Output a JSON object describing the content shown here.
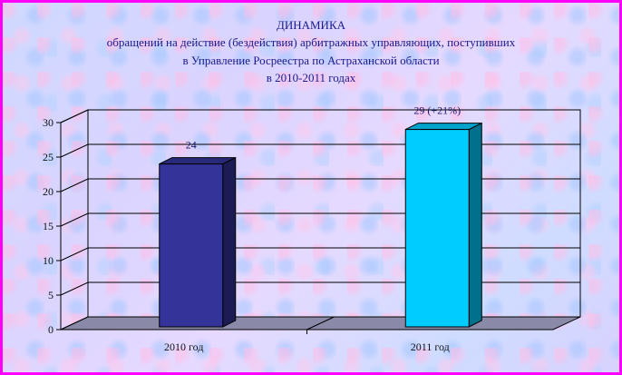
{
  "chart_data": {
    "type": "bar",
    "title": "ДИНАМИКА",
    "subtitle": [
      "обращений на действие (бездействия) арбитражных управляющих, поступивших",
      "в Управление Росреестра по Астраханской области",
      "в 2010-2011 годах"
    ],
    "categories": [
      "2010 год",
      "2011 год"
    ],
    "values": [
      24,
      29
    ],
    "data_labels": [
      "24",
      "29 (+21%)"
    ],
    "colors": [
      "#333399",
      "#00ccff"
    ],
    "xlabel": "",
    "ylabel": "",
    "ylim": [
      0,
      30
    ],
    "yticks": [
      "0",
      "5",
      "10",
      "15",
      "20",
      "25",
      "30"
    ],
    "grid": true,
    "legend": false,
    "border_color": "#ff00ff"
  }
}
